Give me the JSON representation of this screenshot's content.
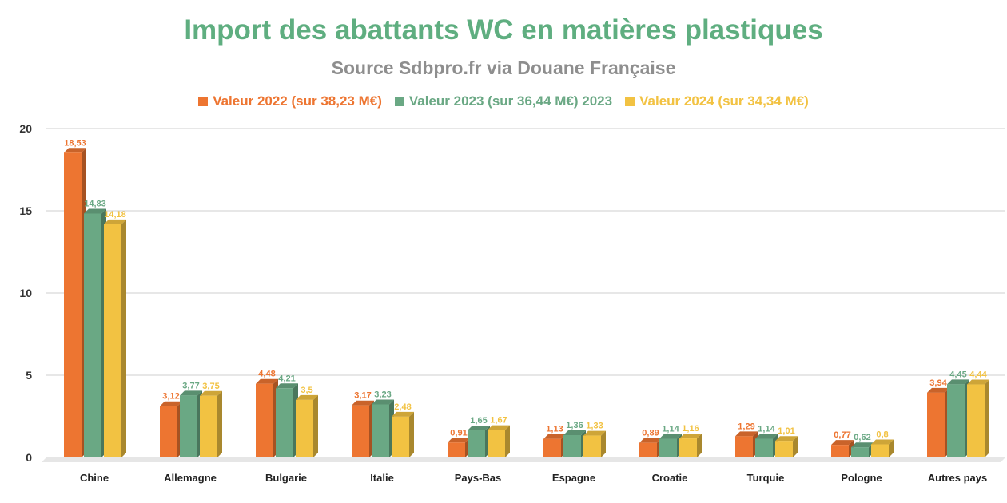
{
  "header": {
    "title": "Import des abattants WC en matières plastiques",
    "subtitle": "Source  Sdbpro.fr via Douane Française"
  },
  "chart_data": {
    "type": "bar",
    "title": "Import des abattants WC en matières plastiques",
    "subtitle": "Source  Sdbpro.fr via Douane Française",
    "xlabel": "",
    "ylabel": "",
    "ylim": [
      0,
      20
    ],
    "yticks": [
      0,
      5,
      10,
      15,
      20
    ],
    "grid": true,
    "legend_position": "top",
    "categories": [
      "Chine",
      "Allemagne",
      "Bulgarie",
      "Italie",
      "Pays-Bas",
      "Espagne",
      "Croatie",
      "Turquie",
      "Pologne",
      "Autres pays"
    ],
    "series": [
      {
        "name": "Valeur 2022 (sur 38,23 M€)",
        "color": "#ed7531",
        "values": [
          18.53,
          3.12,
          4.48,
          3.17,
          0.91,
          1.13,
          0.89,
          1.29,
          0.77,
          3.94
        ],
        "labels": [
          "18,53",
          "3,12",
          "4,48",
          "3,17",
          "0,91",
          "1,13",
          "0,89",
          "1,29",
          "0,77",
          "3,94"
        ]
      },
      {
        "name": "Valeur 2023 (sur 36,44 M€) 2023",
        "color": "#6aa884",
        "values": [
          14.83,
          3.77,
          4.21,
          3.23,
          1.65,
          1.36,
          1.14,
          1.14,
          0.62,
          4.45
        ],
        "labels": [
          "14,83",
          "3,77",
          "4,21",
          "3,23",
          "1,65",
          "1,36",
          "1,14",
          "1,14",
          "0,62",
          "4,45"
        ]
      },
      {
        "name": "Valeur 2024 (sur 34,34 M€)",
        "color": "#f2c242",
        "values": [
          14.18,
          3.75,
          3.5,
          2.48,
          1.67,
          1.33,
          1.16,
          1.01,
          0.8,
          4.44
        ],
        "labels": [
          "14,18",
          "3,75",
          "3,5",
          "2,48",
          "1,67",
          "1,33",
          "1,16",
          "1,01",
          "0,8",
          "4,44"
        ]
      }
    ]
  }
}
